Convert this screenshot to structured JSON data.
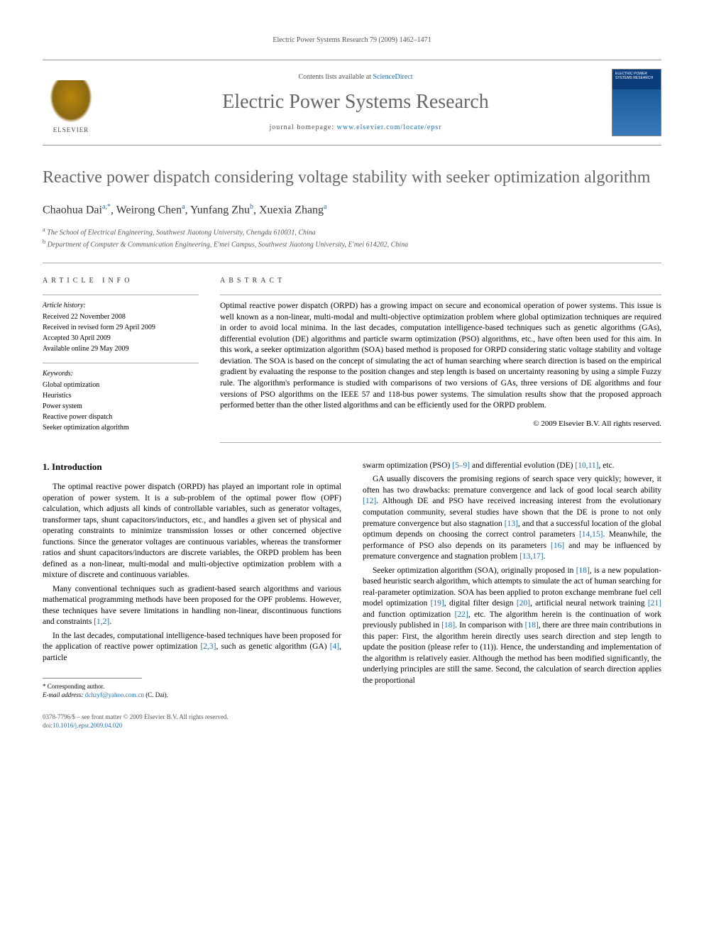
{
  "running_header": "Electric Power Systems Research 79 (2009) 1462–1471",
  "masthead": {
    "contents_prefix": "Contents lists available at ",
    "contents_link": "ScienceDirect",
    "journal_name": "Electric Power Systems Research",
    "homepage_prefix": "journal homepage: ",
    "homepage_url": "www.elsevier.com/locate/epsr",
    "publisher_logo_text": "ELSEVIER",
    "cover_title": "ELECTRIC POWER SYSTEMS RESEARCH"
  },
  "article": {
    "title": "Reactive power dispatch considering voltage stability with seeker optimization algorithm",
    "authors_html": "Chaohua Dai<sup>a,*</sup>, Weirong Chen<sup>a</sup>, Yunfang Zhu<sup>b</sup>, Xuexia Zhang<sup>a</sup>",
    "affiliations": [
      {
        "marker": "a",
        "text": "The School of Electrical Engineering, Southwest Jiaotong University, Chengdu 610031, China"
      },
      {
        "marker": "b",
        "text": "Department of Computer & Communication Engineering, E'mei Campus, Southwest Jiaotong University, E'mei 614202, China"
      }
    ]
  },
  "info": {
    "section_label": "ARTICLE INFO",
    "history_label": "Article history:",
    "history": [
      "Received 22 November 2008",
      "Received in revised form 29 April 2009",
      "Accepted 30 April 2009",
      "Available online 29 May 2009"
    ],
    "keywords_label": "Keywords:",
    "keywords": [
      "Global optimization",
      "Heuristics",
      "Power system",
      "Reactive power dispatch",
      "Seeker optimization algorithm"
    ]
  },
  "abstract": {
    "section_label": "ABSTRACT",
    "text": "Optimal reactive power dispatch (ORPD) has a growing impact on secure and economical operation of power systems. This issue is well known as a non-linear, multi-modal and multi-objective optimization problem where global optimization techniques are required in order to avoid local minima. In the last decades, computation intelligence-based techniques such as genetic algorithms (GAs), differential evolution (DE) algorithms and particle swarm optimization (PSO) algorithms, etc., have often been used for this aim. In this work, a seeker optimization algorithm (SOA) based method is proposed for ORPD considering static voltage stability and voltage deviation. The SOA is based on the concept of simulating the act of human searching where search direction is based on the empirical gradient by evaluating the response to the position changes and step length is based on uncertainty reasoning by using a simple Fuzzy rule. The algorithm's performance is studied with comparisons of two versions of GAs, three versions of DE algorithms and four versions of PSO algorithms on the IEEE 57 and 118-bus power systems. The simulation results show that the proposed approach performed better than the other listed algorithms and can be efficiently used for the ORPD problem.",
    "copyright": "© 2009 Elsevier B.V. All rights reserved."
  },
  "body": {
    "intro_heading": "1.  Introduction",
    "left_paragraphs": [
      "The optimal reactive power dispatch (ORPD) has played an important role in optimal operation of power system. It is a sub-problem of the optimal power flow (OPF) calculation, which adjusts all kinds of controllable variables, such as generator voltages, transformer taps, shunt capacitors/inductors, etc., and handles a given set of physical and operating constraints to minimize transmission losses or other concerned objective functions. Since the generator voltages are continuous variables, whereas the transformer ratios and shunt capacitors/inductors are discrete variables, the ORPD problem has been defined as a non-linear, multi-modal and multi-objective optimization problem with a mixture of discrete and continuous variables.",
      "Many conventional techniques such as gradient-based search algorithms and various mathematical programming methods have been proposed for the OPF problems. However, these techniques have severe limitations in handling non-linear, discontinuous functions and constraints [1,2].",
      "In the last decades, computational intelligence-based techniques have been proposed for the application of reactive power optimization [2,3], such as genetic algorithm (GA) [4], particle"
    ],
    "right_paragraphs": [
      "swarm optimization (PSO) [5–9] and differential evolution (DE) [10,11], etc.",
      "GA usually discovers the promising regions of search space very quickly; however, it often has two drawbacks: premature convergence and lack of good local search ability [12]. Although DE and PSO have received increasing interest from the evolutionary computation community, several studies have shown that the DE is prone to not only premature convergence but also stagnation [13], and that a successful location of the global optimum depends on choosing the correct control parameters [14,15]. Meanwhile, the performance of PSO also depends on its parameters [16] and may be influenced by premature convergence and stagnation problem [13,17].",
      "Seeker optimization algorithm (SOA), originally proposed in [18], is a new population-based heuristic search algorithm, which attempts to simulate the act of human searching for real-parameter optimization. SOA has been applied to proton exchange membrane fuel cell model optimization [19], digital filter design [20], artificial neural network training [21] and function optimization [22], etc. The algorithm herein is the continuation of work previously published in [18]. In comparison with [18], there are three main contributions in this paper: First, the algorithm herein directly uses search direction and step length to update the position (please refer to (11)). Hence, the understanding and implementation of the algorithm is relatively easier. Although the method has been modified significantly, the underlying principles are still the same. Second, the calculation of search direction applies the proportional"
    ]
  },
  "footer": {
    "corr_label": "* Corresponding author.",
    "email_label": "E-mail address: ",
    "email": "dchzyf@yahoo.com.cn",
    "email_author": " (C. Dai).",
    "issn_line": "0378-7796/$ – see front matter © 2009 Elsevier B.V. All rights reserved.",
    "doi_prefix": "doi:",
    "doi": "10.1016/j.epsr.2009.04.020"
  },
  "ref_links": [
    "[1,2]",
    "[2,3]",
    "[4]",
    "[5–9]",
    "[10,11]",
    "[12]",
    "[13]",
    "[14,15]",
    "[16]",
    "[13,17]",
    "[18]",
    "[19]",
    "[20]",
    "[21]",
    "[22]"
  ],
  "colors": {
    "link": "#1a6fb8",
    "heading_gray": "#666666",
    "rule": "#aaaaaa",
    "cover_top": "#0a3d7a",
    "cover_bottom": "#3a7aba"
  }
}
